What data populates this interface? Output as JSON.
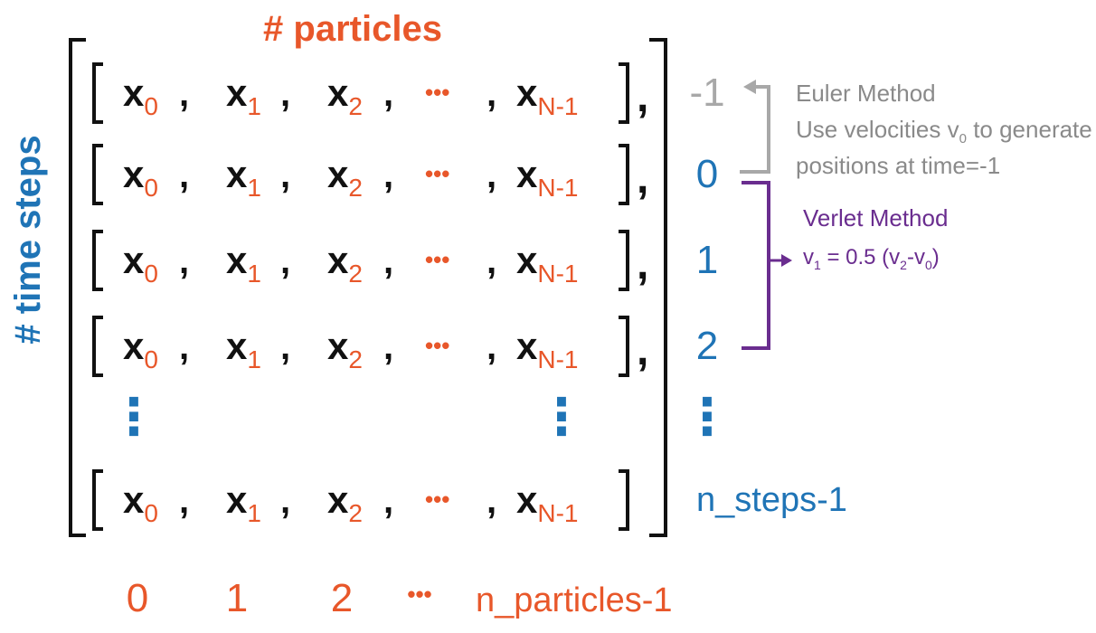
{
  "colors": {
    "black": "#111111",
    "orange": "#e8572a",
    "blue": "#1f74b6",
    "gray": "#a8a8a8",
    "gray_text": "#8a8a8a",
    "purple": "#6a2d8f"
  },
  "header": {
    "particles_label": "# particles",
    "time_steps_label": "# time steps"
  },
  "matrix": {
    "var_symbol": "x",
    "subscripts": [
      "0",
      "1",
      "2",
      "N-1"
    ],
    "ellipsis": "•••",
    "comma": ",",
    "vertical_dots": "⋮"
  },
  "row_labels": [
    "-1",
    "0",
    "1",
    "2",
    "⋮",
    "n_steps-1"
  ],
  "column_labels": [
    "0",
    "1",
    "2",
    "•••",
    "n_particles-1"
  ],
  "euler": {
    "title": "Euler Method",
    "line1_pre": "Use velocities v",
    "line1_sub": "0",
    "line1_post": " to generate",
    "line2": "positions at time=-1"
  },
  "verlet": {
    "title": "Verlet Method",
    "eq_v": "v",
    "eq_sub1": "1",
    "eq_mid": " = 0.5 (v",
    "eq_sub2": "2",
    "eq_dash": "-v",
    "eq_sub3": "0",
    "eq_end": ")"
  }
}
